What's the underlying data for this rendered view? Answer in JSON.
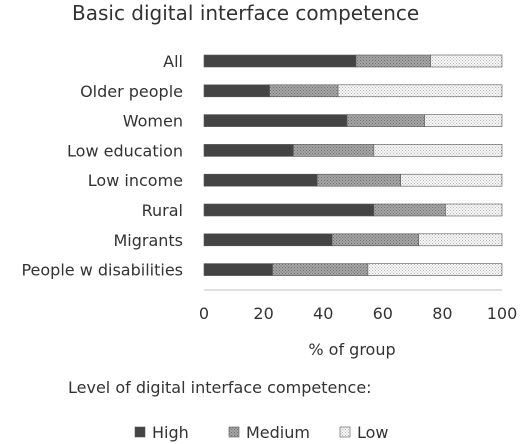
{
  "chart_data": {
    "type": "bar",
    "orientation": "horizontal",
    "stacked": true,
    "title": "Basic digital interface competence",
    "xlabel": "% of group",
    "ylabel": "",
    "xlim": [
      0,
      100
    ],
    "xticks": [
      0,
      20,
      40,
      60,
      80,
      100
    ],
    "categories": [
      "All",
      "Older people",
      "Women",
      "Low education",
      "Low income",
      "Rural",
      "Migrants",
      "People w disabilities"
    ],
    "series": [
      {
        "name": "High",
        "pattern": "solid-dark",
        "values": [
          51,
          22,
          48,
          30,
          38,
          57,
          43,
          23
        ]
      },
      {
        "name": "Medium",
        "pattern": "dotted-medium",
        "values": [
          25,
          23,
          26,
          27,
          28,
          24,
          29,
          32
        ]
      },
      {
        "name": "Low",
        "pattern": "dotted-light",
        "values": [
          24,
          55,
          26,
          43,
          34,
          19,
          28,
          45
        ]
      }
    ],
    "grid": false,
    "legend": {
      "title": "Level of digital interface competence:",
      "position": "bottom"
    }
  },
  "colors": {
    "high": "#444444",
    "medium": "#9a9a9a",
    "low": "#f4f4f4",
    "stroke": "#555555",
    "text": "#333333"
  }
}
